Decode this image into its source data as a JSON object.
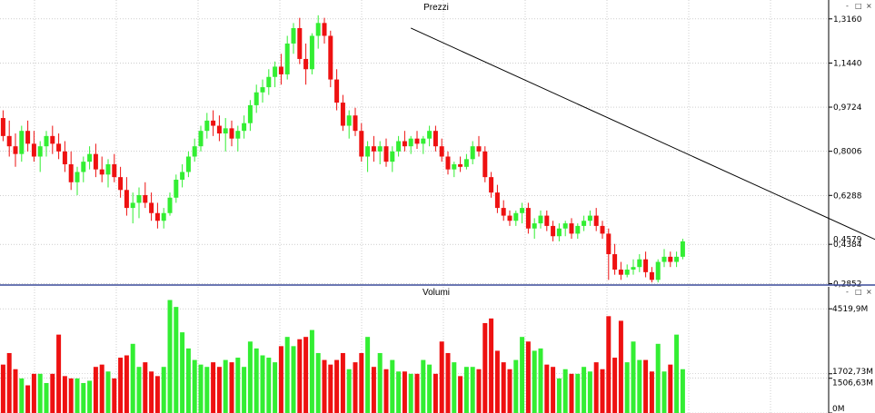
{
  "colors": {
    "up": "#33ee33",
    "down": "#ee1111",
    "grid": "#b0b0b0",
    "trendline": "#000000",
    "separator": "#3a4a9a"
  },
  "controls": {
    "minimize": "-",
    "maximize": "□",
    "close": "×"
  },
  "chart_data": [
    {
      "type": "candlestick",
      "title": "Prezzi",
      "y_ticks": [
        "1,3160",
        "1,1440",
        "0,9724",
        "0,8006",
        "0,6288",
        "0,4384",
        "0,2852"
      ],
      "y_tick_values": [
        1.316,
        1.144,
        0.9724,
        0.8006,
        0.6288,
        0.4384,
        0.2852
      ],
      "last_value_label": "0,4579",
      "last_value": 0.4579,
      "ylim": [
        0.28,
        1.34
      ],
      "grid": true,
      "trendline": [
        [
          66,
          1.28
        ],
        [
          145,
          0.415
        ]
      ],
      "candles": [
        [
          0,
          0.93,
          0.96,
          0.84,
          0.86
        ],
        [
          1,
          0.86,
          0.92,
          0.78,
          0.82
        ],
        [
          2,
          0.82,
          0.87,
          0.74,
          0.79
        ],
        [
          3,
          0.79,
          0.9,
          0.76,
          0.88
        ],
        [
          4,
          0.88,
          0.92,
          0.8,
          0.83
        ],
        [
          5,
          0.83,
          0.88,
          0.76,
          0.78
        ],
        [
          6,
          0.78,
          0.84,
          0.72,
          0.82
        ],
        [
          7,
          0.82,
          0.88,
          0.78,
          0.86
        ],
        [
          8,
          0.86,
          0.9,
          0.79,
          0.83
        ],
        [
          9,
          0.83,
          0.87,
          0.77,
          0.8
        ],
        [
          10,
          0.8,
          0.84,
          0.72,
          0.75
        ],
        [
          11,
          0.75,
          0.8,
          0.65,
          0.68
        ],
        [
          12,
          0.68,
          0.74,
          0.63,
          0.72
        ],
        [
          13,
          0.72,
          0.78,
          0.68,
          0.76
        ],
        [
          14,
          0.76,
          0.82,
          0.73,
          0.79
        ],
        [
          15,
          0.79,
          0.83,
          0.7,
          0.73
        ],
        [
          16,
          0.73,
          0.78,
          0.68,
          0.71
        ],
        [
          17,
          0.71,
          0.77,
          0.66,
          0.75
        ],
        [
          18,
          0.75,
          0.79,
          0.68,
          0.7
        ],
        [
          19,
          0.7,
          0.74,
          0.62,
          0.65
        ],
        [
          20,
          0.65,
          0.7,
          0.55,
          0.58
        ],
        [
          21,
          0.58,
          0.64,
          0.52,
          0.6
        ],
        [
          22,
          0.6,
          0.66,
          0.54,
          0.63
        ],
        [
          23,
          0.63,
          0.68,
          0.58,
          0.6
        ],
        [
          24,
          0.6,
          0.64,
          0.53,
          0.56
        ],
        [
          25,
          0.56,
          0.6,
          0.5,
          0.53
        ],
        [
          26,
          0.53,
          0.58,
          0.5,
          0.56
        ],
        [
          27,
          0.56,
          0.64,
          0.55,
          0.62
        ],
        [
          28,
          0.62,
          0.71,
          0.6,
          0.69
        ],
        [
          29,
          0.69,
          0.75,
          0.66,
          0.72
        ],
        [
          30,
          0.72,
          0.8,
          0.7,
          0.78
        ],
        [
          31,
          0.78,
          0.85,
          0.76,
          0.82
        ],
        [
          32,
          0.82,
          0.9,
          0.8,
          0.88
        ],
        [
          33,
          0.88,
          0.95,
          0.85,
          0.92
        ],
        [
          34,
          0.92,
          0.96,
          0.86,
          0.9
        ],
        [
          35,
          0.9,
          0.94,
          0.84,
          0.87
        ],
        [
          36,
          0.87,
          0.93,
          0.8,
          0.89
        ],
        [
          37,
          0.89,
          0.92,
          0.82,
          0.85
        ],
        [
          38,
          0.85,
          0.9,
          0.8,
          0.88
        ],
        [
          39,
          0.88,
          0.94,
          0.85,
          0.91
        ],
        [
          40,
          0.91,
          1.0,
          0.88,
          0.98
        ],
        [
          41,
          0.98,
          1.06,
          0.95,
          1.03
        ],
        [
          42,
          1.03,
          1.08,
          0.99,
          1.05
        ],
        [
          43,
          1.05,
          1.12,
          1.02,
          1.09
        ],
        [
          44,
          1.09,
          1.15,
          1.05,
          1.13
        ],
        [
          45,
          1.13,
          1.18,
          1.06,
          1.1
        ],
        [
          46,
          1.1,
          1.25,
          1.08,
          1.22
        ],
        [
          47,
          1.22,
          1.3,
          1.18,
          1.28
        ],
        [
          48,
          1.28,
          1.32,
          1.14,
          1.16
        ],
        [
          49,
          1.16,
          1.22,
          1.06,
          1.12
        ],
        [
          50,
          1.12,
          1.26,
          1.1,
          1.25
        ],
        [
          51,
          1.25,
          1.33,
          1.2,
          1.3
        ],
        [
          52,
          1.3,
          1.32,
          1.22,
          1.25
        ],
        [
          53,
          1.25,
          1.27,
          1.05,
          1.08
        ],
        [
          54,
          1.08,
          1.12,
          0.96,
          0.99
        ],
        [
          55,
          0.99,
          1.02,
          0.88,
          0.9
        ],
        [
          56,
          0.9,
          0.96,
          0.85,
          0.94
        ],
        [
          57,
          0.94,
          0.97,
          0.86,
          0.88
        ],
        [
          58,
          0.88,
          0.91,
          0.76,
          0.78
        ],
        [
          59,
          0.78,
          0.84,
          0.72,
          0.82
        ],
        [
          60,
          0.82,
          0.86,
          0.76,
          0.8
        ],
        [
          61,
          0.8,
          0.84,
          0.75,
          0.82
        ],
        [
          62,
          0.82,
          0.85,
          0.74,
          0.76
        ],
        [
          63,
          0.76,
          0.82,
          0.72,
          0.8
        ],
        [
          64,
          0.8,
          0.86,
          0.78,
          0.84
        ],
        [
          65,
          0.84,
          0.88,
          0.8,
          0.82
        ],
        [
          66,
          0.82,
          0.86,
          0.79,
          0.85
        ],
        [
          67,
          0.85,
          0.88,
          0.81,
          0.83
        ],
        [
          68,
          0.83,
          0.86,
          0.79,
          0.85
        ],
        [
          69,
          0.85,
          0.9,
          0.82,
          0.88
        ],
        [
          70,
          0.88,
          0.9,
          0.8,
          0.82
        ],
        [
          71,
          0.82,
          0.85,
          0.76,
          0.78
        ],
        [
          72,
          0.78,
          0.8,
          0.71,
          0.73
        ],
        [
          73,
          0.73,
          0.76,
          0.7,
          0.75
        ],
        [
          74,
          0.75,
          0.78,
          0.72,
          0.74
        ],
        [
          75,
          0.74,
          0.79,
          0.73,
          0.77
        ],
        [
          76,
          0.77,
          0.84,
          0.75,
          0.82
        ],
        [
          77,
          0.82,
          0.86,
          0.78,
          0.8
        ],
        [
          78,
          0.8,
          0.82,
          0.68,
          0.7
        ],
        [
          79,
          0.7,
          0.72,
          0.62,
          0.64
        ],
        [
          80,
          0.64,
          0.67,
          0.56,
          0.58
        ],
        [
          81,
          0.58,
          0.61,
          0.53,
          0.55
        ],
        [
          82,
          0.55,
          0.57,
          0.51,
          0.53
        ],
        [
          83,
          0.53,
          0.57,
          0.51,
          0.56
        ],
        [
          84,
          0.56,
          0.6,
          0.52,
          0.58
        ],
        [
          85,
          0.58,
          0.6,
          0.48,
          0.5
        ],
        [
          86,
          0.5,
          0.54,
          0.46,
          0.52
        ],
        [
          87,
          0.52,
          0.57,
          0.5,
          0.55
        ],
        [
          88,
          0.55,
          0.57,
          0.49,
          0.51
        ],
        [
          89,
          0.51,
          0.53,
          0.45,
          0.47
        ],
        [
          90,
          0.47,
          0.52,
          0.45,
          0.5
        ],
        [
          91,
          0.5,
          0.53,
          0.47,
          0.52
        ],
        [
          92,
          0.52,
          0.54,
          0.46,
          0.48
        ],
        [
          93,
          0.48,
          0.52,
          0.46,
          0.51
        ],
        [
          94,
          0.51,
          0.55,
          0.49,
          0.53
        ],
        [
          95,
          0.53,
          0.57,
          0.51,
          0.55
        ],
        [
          96,
          0.55,
          0.58,
          0.49,
          0.51
        ],
        [
          97,
          0.51,
          0.53,
          0.46,
          0.48
        ],
        [
          98,
          0.48,
          0.5,
          0.3,
          0.4
        ],
        [
          99,
          0.4,
          0.44,
          0.32,
          0.34
        ],
        [
          100,
          0.34,
          0.37,
          0.3,
          0.32
        ],
        [
          101,
          0.32,
          0.36,
          0.31,
          0.34
        ],
        [
          102,
          0.34,
          0.38,
          0.32,
          0.35
        ],
        [
          103,
          0.35,
          0.4,
          0.33,
          0.38
        ],
        [
          104,
          0.38,
          0.41,
          0.31,
          0.33
        ],
        [
          105,
          0.33,
          0.35,
          0.29,
          0.3
        ],
        [
          106,
          0.3,
          0.38,
          0.29,
          0.37
        ],
        [
          107,
          0.37,
          0.42,
          0.35,
          0.39
        ],
        [
          108,
          0.39,
          0.41,
          0.35,
          0.37
        ],
        [
          109,
          0.37,
          0.41,
          0.35,
          0.39
        ],
        [
          110,
          0.39,
          0.46,
          0.38,
          0.45
        ]
      ]
    },
    {
      "type": "bar",
      "title": "Volumi",
      "y_ticks": [
        "4519,9M",
        "1702,73M",
        "1506,63M",
        "0M"
      ],
      "y_tick_values": [
        4519.9,
        1702.73,
        1506.63,
        0
      ],
      "ylim": [
        0,
        5000
      ],
      "grid": true,
      "values": [
        2100,
        2600,
        1900,
        1500,
        1200,
        1700,
        1700,
        1300,
        1700,
        3400,
        1600,
        1500,
        1500,
        1300,
        1400,
        2000,
        2100,
        1800,
        1500,
        2400,
        2500,
        3000,
        2000,
        2200,
        1800,
        1600,
        2000,
        4900,
        4600,
        3500,
        2800,
        2300,
        2100,
        2000,
        2200,
        2000,
        2300,
        2200,
        2400,
        2000,
        3100,
        2800,
        2500,
        2400,
        2200,
        2900,
        3300,
        2900,
        3200,
        3300,
        3600,
        2600,
        2300,
        2100,
        2300,
        2600,
        1900,
        2200,
        2600,
        3300,
        2000,
        2600,
        1900,
        2300,
        1800,
        1800,
        1700,
        1700,
        2300,
        2100,
        1700,
        3100,
        2600,
        2200,
        1600,
        2000,
        2000,
        1900,
        3900,
        4100,
        2700,
        2200,
        1900,
        2300,
        3300,
        3100,
        2700,
        2800,
        2100,
        2000,
        1500,
        1900,
        1700,
        1700,
        2000,
        1800,
        2200,
        1900,
        4200,
        2400,
        4000,
        2200,
        3100,
        2300,
        2300,
        1800,
        3000,
        1800,
        2100,
        3400,
        1900
      ]
    }
  ]
}
